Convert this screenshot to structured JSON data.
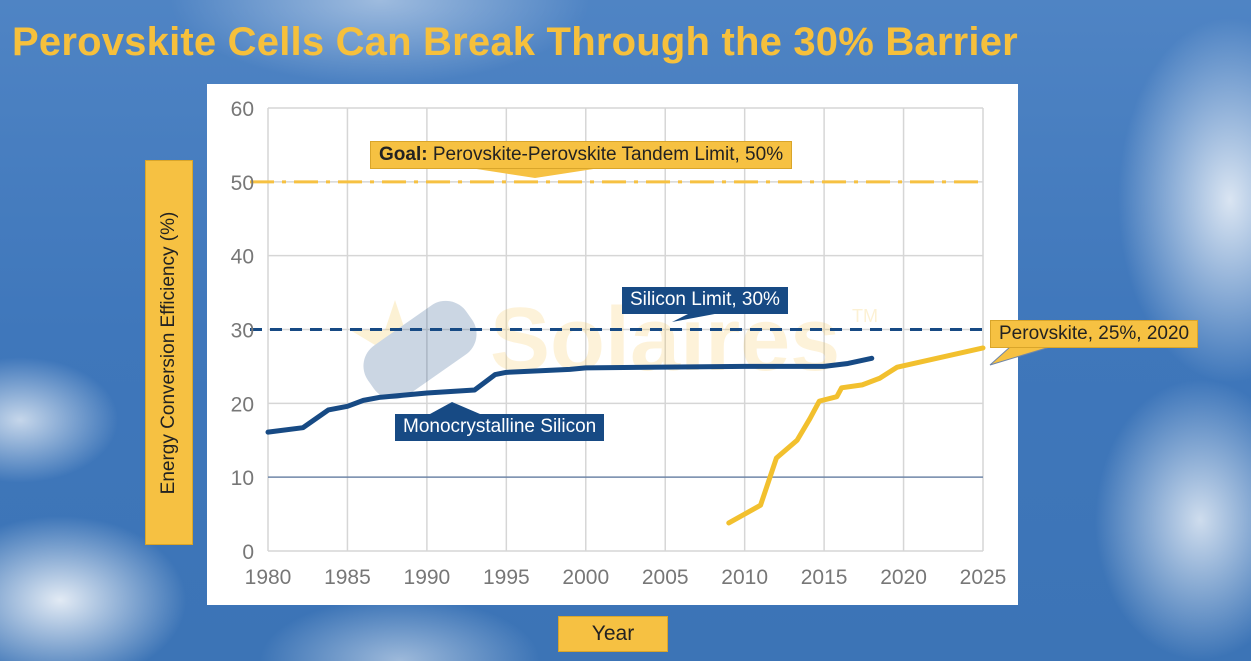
{
  "title": "Perovskite Cells Can Break Through the 30% Barrier",
  "watermark": {
    "text": "Solaires",
    "tm": "TM"
  },
  "chart_data": {
    "type": "line",
    "xlabel": "Year",
    "ylabel": "Energy Conversion Efficiency (%)",
    "xlim": [
      1980,
      2025
    ],
    "ylim": [
      0,
      60
    ],
    "x_ticks": [
      "1980",
      "1985",
      "1990",
      "1995",
      "2000",
      "2005",
      "2010",
      "2015",
      "2020",
      "2025"
    ],
    "y_ticks": [
      "0",
      "10",
      "20",
      "30",
      "40",
      "50",
      "60"
    ],
    "grid": true,
    "series": [
      {
        "name": "Monocrystalline Silicon",
        "color": "#174a84",
        "x": [
          1980,
          1982.2,
          1983.8,
          1985,
          1986,
          1987,
          1990,
          1993,
          1994.3,
          1995,
          1999,
          2000,
          2010,
          2015,
          2016.5,
          2018
        ],
        "y": [
          16.1,
          16.7,
          19.1,
          19.6,
          20.4,
          20.8,
          21.4,
          21.8,
          23.9,
          24.2,
          24.6,
          24.8,
          25.0,
          25.0,
          25.4,
          26.1
        ]
      },
      {
        "name": "Perovskite",
        "color": "#f2c02e",
        "x": [
          2009,
          2011,
          2012,
          2013.3,
          2014.1,
          2014.7,
          2015.8,
          2016.1,
          2017.4,
          2018.5,
          2019.6,
          2025
        ],
        "y": [
          3.8,
          6.2,
          12.6,
          15.0,
          17.9,
          20.3,
          20.9,
          22.1,
          22.5,
          23.4,
          24.9,
          27.5
        ]
      }
    ],
    "reference_lines": [
      {
        "label_bold": "Goal:",
        "label": "Perovskite-Perovskite Tandem Limit, 50%",
        "y": 50,
        "style": "dash-dot",
        "color": "#f6c142"
      },
      {
        "label": "Silicon Limit, 30%",
        "y": 30,
        "style": "dashed",
        "color": "#174a84"
      }
    ],
    "annotations": [
      {
        "text": "Monocrystalline Silicon"
      },
      {
        "text": "Perovskite, 25%, 2020"
      }
    ]
  }
}
